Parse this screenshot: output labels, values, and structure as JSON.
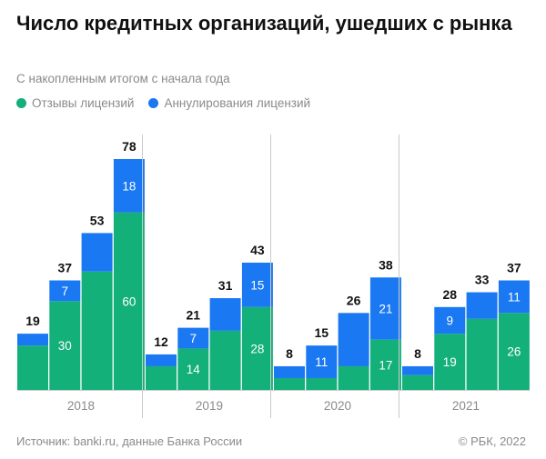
{
  "title": "Число кредитных организаций, ушедших с рынка",
  "subtitle": "С накопленным итогом с начала года",
  "legend": {
    "revocations": "Отзывы лицензий",
    "annulments": "Аннулирования лицензий"
  },
  "colors": {
    "revocations": "#13b07a",
    "annulments": "#1a78f2"
  },
  "footer": {
    "source": "Источник: banki.ru, данные Банка России",
    "copyright": "© РБК, 2022"
  },
  "chart_data": {
    "type": "bar",
    "stacked": true,
    "groups": [
      {
        "year": "2018",
        "revocations": [
          15,
          30,
          40,
          60
        ],
        "annulments": [
          4,
          7,
          13,
          18
        ],
        "totals": [
          19,
          37,
          53,
          78
        ],
        "revocation_labels": [
          "",
          "30",
          "",
          "60"
        ],
        "annulment_labels": [
          "",
          "7",
          "",
          "18"
        ]
      },
      {
        "year": "2019",
        "revocations": [
          8,
          14,
          20,
          28
        ],
        "annulments": [
          4,
          7,
          11,
          15
        ],
        "totals": [
          12,
          21,
          31,
          43
        ],
        "revocation_labels": [
          "",
          "14",
          "",
          "28"
        ],
        "annulment_labels": [
          "",
          "7",
          "",
          "15"
        ]
      },
      {
        "year": "2020",
        "revocations": [
          4,
          4,
          8,
          17
        ],
        "annulments": [
          4,
          11,
          18,
          21
        ],
        "totals": [
          8,
          15,
          26,
          38
        ],
        "revocation_labels": [
          "",
          "",
          "",
          "17"
        ],
        "annulment_labels": [
          "",
          "11",
          "",
          "21"
        ]
      },
      {
        "year": "2021",
        "revocations": [
          5,
          19,
          24,
          26
        ],
        "annulments": [
          3,
          9,
          9,
          11
        ],
        "totals": [
          8,
          28,
          33,
          37
        ],
        "revocation_labels": [
          "",
          "19",
          "",
          "26"
        ],
        "annulment_labels": [
          "",
          "9",
          "",
          "11"
        ]
      }
    ],
    "series": [
      {
        "name": "Отзывы лицензий",
        "key": "revocations"
      },
      {
        "name": "Аннулирования лицензий",
        "key": "annulments"
      }
    ],
    "ylim": [
      0,
      78
    ]
  }
}
